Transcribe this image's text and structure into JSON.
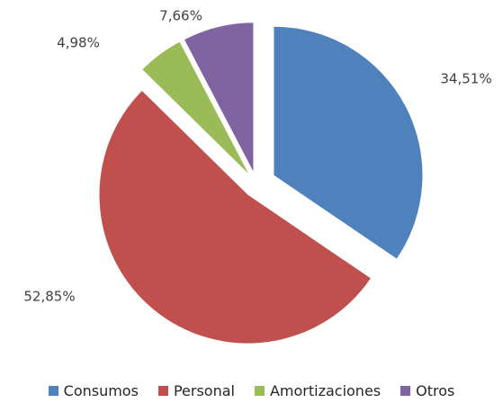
{
  "chart_data": {
    "type": "pie",
    "categories": [
      "Consumos",
      "Personal",
      "Amortizaciones",
      "Otros"
    ],
    "values": [
      34.51,
      52.85,
      4.98,
      7.66
    ],
    "value_labels": [
      "34,51%",
      "52,85%",
      "4,98%",
      "7,66%"
    ],
    "colors": [
      "#4f81bd",
      "#c0504d",
      "#9bbb59",
      "#8064a2"
    ],
    "legend": "bottom"
  }
}
